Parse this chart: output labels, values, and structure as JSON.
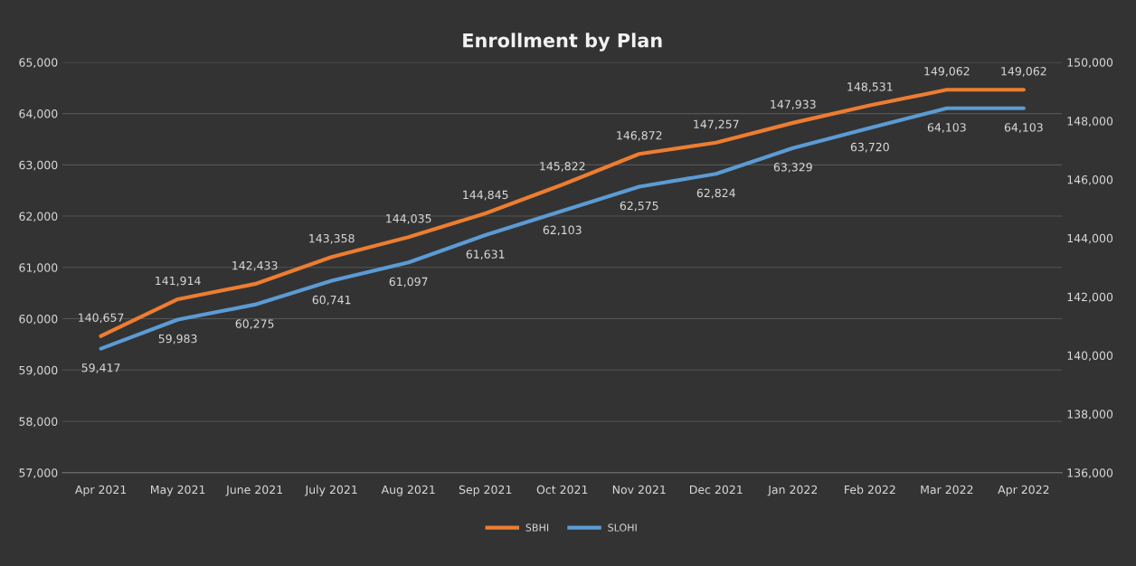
{
  "chart_data": {
    "type": "line",
    "title": "Enrollment by Plan",
    "categories": [
      "Apr 2021",
      "May 2021",
      "June 2021",
      "July 2021",
      "Aug 2021",
      "Sep 2021",
      "Oct 2021",
      "Nov 2021",
      "Dec 2021",
      "Jan 2022",
      "Feb 2022",
      "Mar 2022",
      "Apr 2022"
    ],
    "series": [
      {
        "name": "SBHI",
        "color": "#ed7d31",
        "axis": "y2",
        "values": [
          140657,
          141914,
          142433,
          143358,
          144035,
          144845,
          145822,
          146872,
          147257,
          147933,
          148531,
          149062,
          149062
        ],
        "value_labels": [
          "140,657",
          "141,914",
          "142,433",
          "143,358",
          "144,035",
          "144,845",
          "145,822",
          "146,872",
          "147,257",
          "147,933",
          "148,531",
          "149,062",
          "149,062"
        ]
      },
      {
        "name": "SLOHI",
        "color": "#5b9bd5",
        "axis": "y",
        "values": [
          59417,
          59983,
          60275,
          60741,
          61097,
          61631,
          62103,
          62575,
          62824,
          63329,
          63720,
          64103,
          64103
        ],
        "value_labels": [
          "59,417",
          "59,983",
          "60,275",
          "60,741",
          "61,097",
          "61,631",
          "62,103",
          "62,575",
          "62,824",
          "63,329",
          "63,720",
          "64,103",
          "64,103"
        ]
      }
    ],
    "ylim": [
      57000,
      65000
    ],
    "yticks": [
      {
        "value": 57000,
        "label": "57,000"
      },
      {
        "value": 58000,
        "label": "58,000"
      },
      {
        "value": 59000,
        "label": "59,000"
      },
      {
        "value": 60000,
        "label": "60,000"
      },
      {
        "value": 61000,
        "label": "61,000"
      },
      {
        "value": 62000,
        "label": "62,000"
      },
      {
        "value": 63000,
        "label": "63,000"
      },
      {
        "value": 64000,
        "label": "64,000"
      },
      {
        "value": 65000,
        "label": "65,000"
      }
    ],
    "y2lim": [
      136000,
      150000
    ],
    "y2ticks": [
      {
        "value": 136000,
        "label": "136,000"
      },
      {
        "value": 138000,
        "label": "138,000"
      },
      {
        "value": 140000,
        "label": "140,000"
      },
      {
        "value": 142000,
        "label": "142,000"
      },
      {
        "value": 144000,
        "label": "144,000"
      },
      {
        "value": 146000,
        "label": "146,000"
      },
      {
        "value": 148000,
        "label": "148,000"
      },
      {
        "value": 150000,
        "label": "150,000"
      }
    ],
    "grid": "y",
    "legend": "bottom",
    "marker": "none",
    "line_style": "solid"
  }
}
